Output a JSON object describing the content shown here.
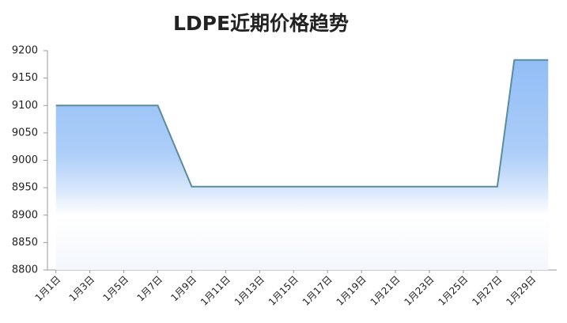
{
  "chart_data": {
    "type": "area",
    "title": "LDPE近期价格趋势",
    "categories": [
      "1月1日",
      null,
      "1月3日",
      null,
      "1月5日",
      null,
      "1月7日",
      null,
      "1月9日",
      null,
      "1月11日",
      null,
      "1月13日",
      null,
      "1月15日",
      null,
      "1月17日",
      null,
      "1月19日",
      null,
      "1月21日",
      null,
      "1月23日",
      null,
      "1月25日",
      null,
      "1月27日",
      null,
      "1月29日",
      null
    ],
    "values": [
      9100,
      9100,
      9100,
      9100,
      9100,
      9100,
      9100,
      9026,
      8952,
      8952,
      8952,
      8952,
      8952,
      8952,
      8952,
      8952,
      8952,
      8952,
      8952,
      8952,
      8952,
      8952,
      8952,
      8952,
      8952,
      8952,
      8952,
      9183,
      9183,
      9183
    ],
    "color": "#5b8c9c",
    "fill_color": "#8fbcf6",
    "ylim": [
      8800,
      9200
    ],
    "yticks": [
      8800,
      8850,
      8900,
      8950,
      9000,
      9050,
      9100,
      9150,
      9200
    ],
    "grid": false
  }
}
